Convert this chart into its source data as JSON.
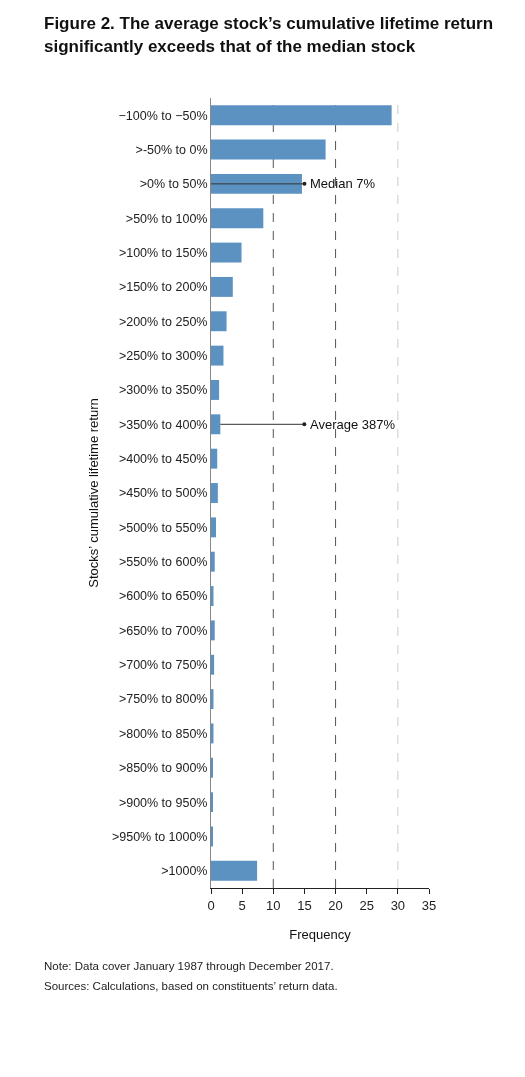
{
  "chart_data": {
    "type": "bar",
    "orientation": "horizontal",
    "title": "Figure 2. The average stock’s cumulative lifetime return significantly exceeds that of the median stock",
    "categories": [
      "−100% to −50%",
      ">-50% to 0%",
      ">0% to 50%",
      ">50% to 100%",
      ">100% to 150%",
      ">150% to 200%",
      ">200% to 250%",
      ">250% to 300%",
      ">300% to 350%",
      ">350% to 400%",
      ">400% to 450%",
      ">450% to 500%",
      ">500% to 550%",
      ">550% to 600%",
      ">600% to 650%",
      ">650% to 700%",
      ">700% to 750%",
      ">750% to 800%",
      ">800% to 850%",
      ">850% to 900%",
      ">900% to 950%",
      ">950% to 1000%",
      ">1000%"
    ],
    "values": [
      29,
      18.4,
      14.6,
      8.4,
      4.9,
      3.5,
      2.5,
      2.0,
      1.3,
      1.5,
      1.0,
      1.1,
      0.8,
      0.6,
      0.4,
      0.6,
      0.5,
      0.4,
      0.4,
      0.3,
      0.3,
      0.3,
      7.4
    ],
    "color": "#5b92c2",
    "xlabel": "Frequency",
    "ylabel": "Stocks’ cumulative lifetime return",
    "xlim": [
      0,
      35
    ],
    "xticks": [
      0,
      5,
      10,
      15,
      20,
      25,
      30,
      35
    ],
    "grid": false,
    "ref_lines": [
      {
        "axis": "x",
        "value": 10,
        "color": "#555555",
        "line_style": "dashed"
      },
      {
        "axis": "x",
        "value": 20,
        "color": "#555555",
        "line_style": "dashed"
      },
      {
        "axis": "x",
        "value": 30,
        "color": "#cccccc",
        "line_style": "dashed"
      }
    ],
    "annotations": [
      {
        "text": "Median 7%",
        "x": 15,
        "y": ">0% to 50%"
      },
      {
        "text": "Average 387%",
        "x": 1.5,
        "y": ">350% to 400%"
      },
      "Note: Data cover January 1987 through December 2017.",
      "Sources: Calculations, based on constituents’ return data."
    ]
  }
}
